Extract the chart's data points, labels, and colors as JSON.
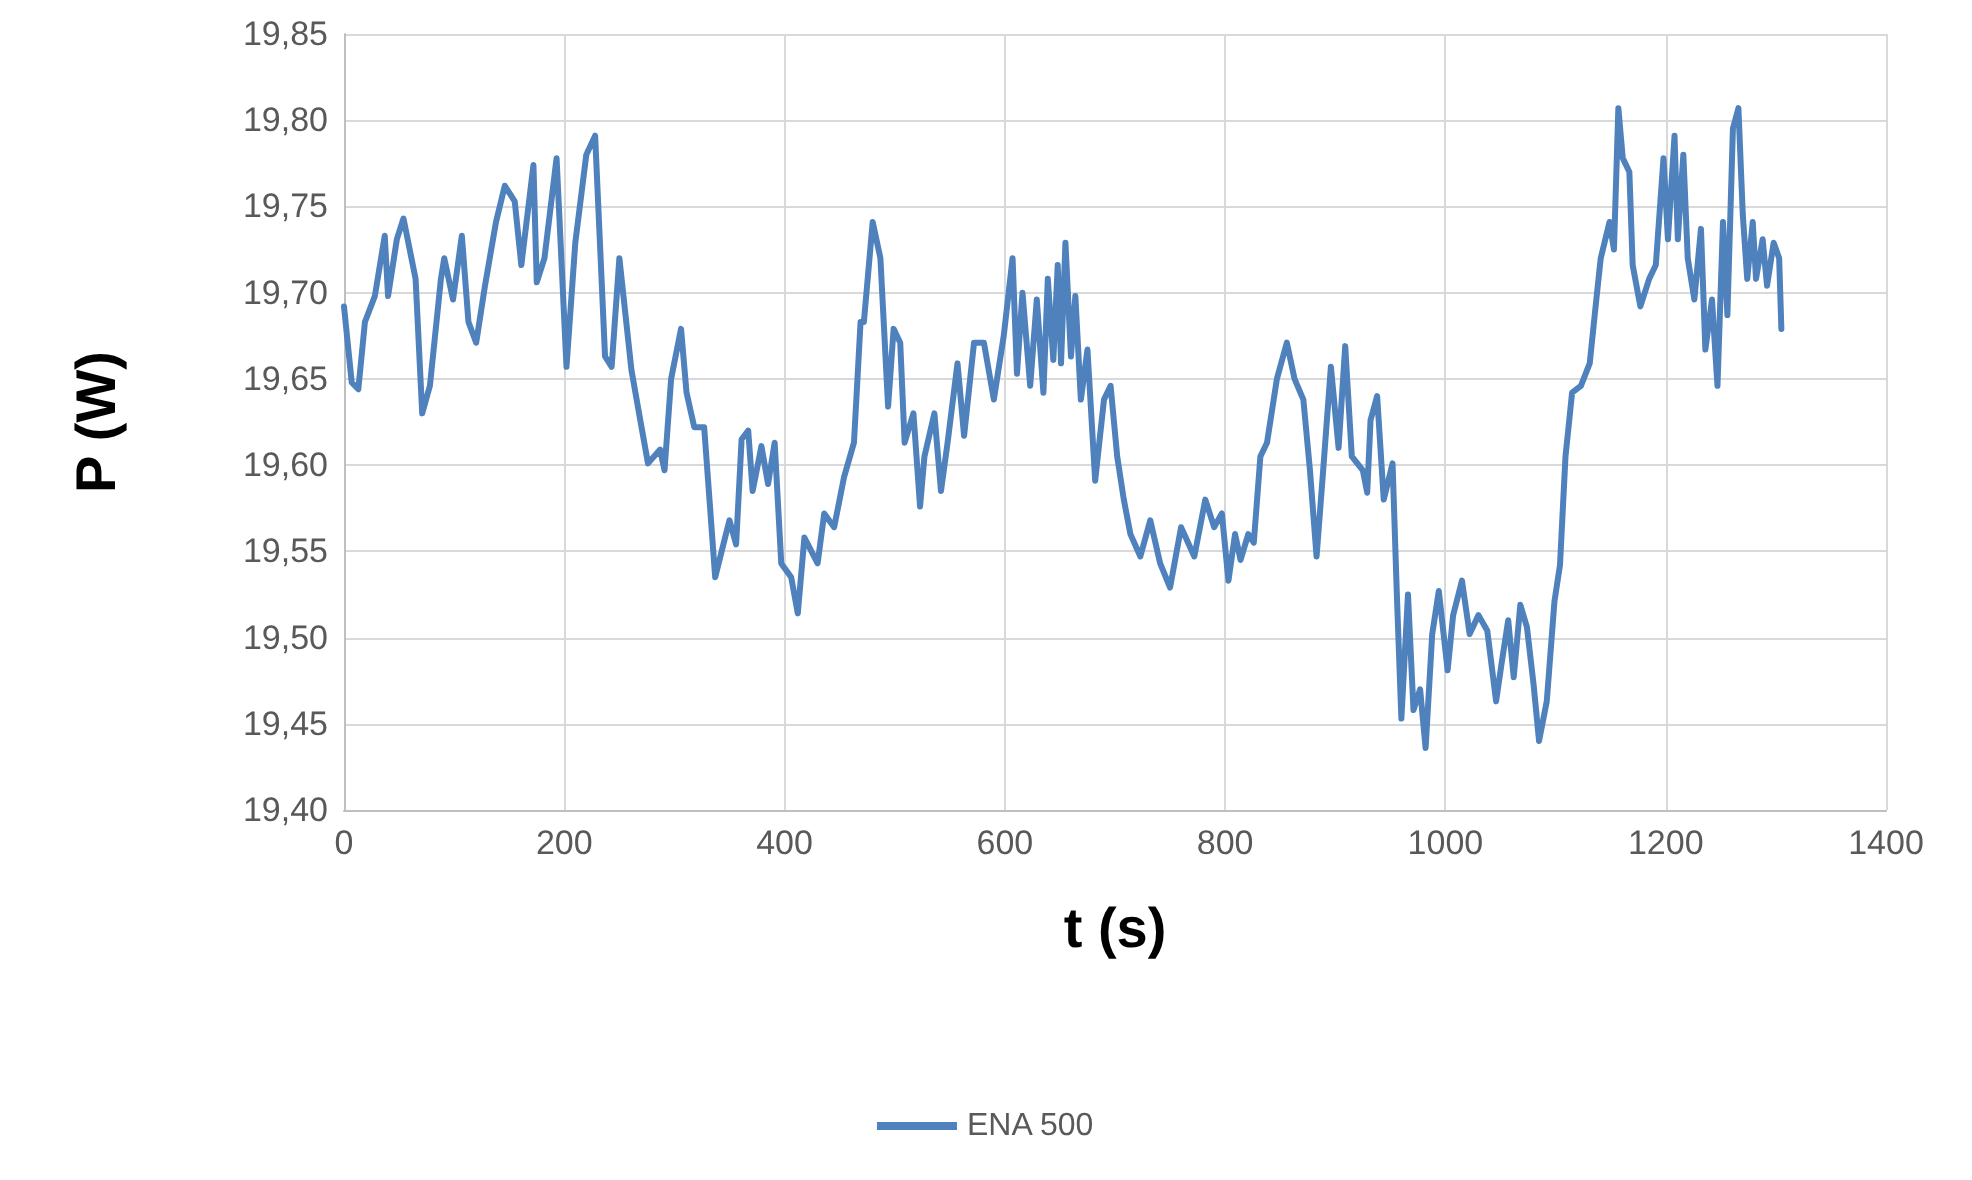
{
  "chart_data": {
    "type": "line",
    "xlabel": "t (s)",
    "ylabel": "P (W)",
    "legend": "bottom",
    "grid": true,
    "marker": "none",
    "line_style": "solid",
    "xlim": [
      0,
      1400
    ],
    "xticks": [
      0,
      200,
      400,
      600,
      800,
      1000,
      1200,
      1400
    ],
    "ylim": [
      19.4,
      19.85
    ],
    "yticks": [
      {
        "value": 19.4,
        "label": "19,40"
      },
      {
        "value": 19.45,
        "label": "19,45"
      },
      {
        "value": 19.5,
        "label": "19,50"
      },
      {
        "value": 19.55,
        "label": "19,55"
      },
      {
        "value": 19.6,
        "label": "19,60"
      },
      {
        "value": 19.65,
        "label": "19,65"
      },
      {
        "value": 19.7,
        "label": "19,70"
      },
      {
        "value": 19.75,
        "label": "19,75"
      },
      {
        "value": 19.8,
        "label": "19,80"
      },
      {
        "value": 19.85,
        "label": "19,85"
      }
    ],
    "series": [
      {
        "name": "ENA 500",
        "color": "#4f81bd",
        "x": [
          0,
          7,
          13,
          19,
          28,
          37,
          40,
          48,
          54,
          65,
          71,
          78,
          88,
          91,
          99,
          107,
          113,
          120,
          128,
          138,
          146,
          155,
          161,
          172,
          175,
          182,
          193,
          202,
          210,
          220,
          228,
          237,
          243,
          250,
          261,
          269,
          276,
          287,
          291,
          297,
          306,
          311,
          318,
          327,
          337,
          346,
          350,
          356,
          361,
          367,
          371,
          379,
          385,
          391,
          397,
          406,
          412,
          418,
          430,
          436,
          445,
          454,
          463,
          469,
          472,
          480,
          487,
          494,
          499,
          505,
          509,
          517,
          523,
          527,
          536,
          542,
          548,
          557,
          563,
          572,
          581,
          590,
          599,
          607,
          611,
          616,
          623,
          629,
          635,
          639,
          644,
          648,
          651,
          655,
          660,
          664,
          669,
          675,
          682,
          690,
          696,
          702,
          708,
          714,
          723,
          732,
          741,
          750,
          760,
          772,
          782,
          790,
          797,
          803,
          809,
          814,
          821,
          826,
          832,
          838,
          847,
          856,
          863,
          871,
          877,
          883,
          889,
          896,
          903,
          909,
          915,
          925,
          929,
          932,
          938,
          944,
          952,
          956,
          960,
          966,
          971,
          977,
          982,
          988,
          994,
          1002,
          1007,
          1015,
          1022,
          1030,
          1038,
          1046,
          1051,
          1057,
          1062,
          1068,
          1074,
          1080,
          1085,
          1092,
          1099,
          1104,
          1109,
          1115,
          1123,
          1131,
          1137,
          1141,
          1149,
          1153,
          1157,
          1161,
          1167,
          1170,
          1177,
          1185,
          1191,
          1198,
          1202,
          1208,
          1211,
          1216,
          1220,
          1226,
          1232,
          1236,
          1242,
          1247,
          1252,
          1256,
          1261,
          1266,
          1270,
          1274,
          1279,
          1282,
          1288,
          1292,
          1298,
          1303,
          1305
        ],
        "values": [
          19.692,
          19.648,
          19.644,
          19.683,
          19.698,
          19.733,
          19.698,
          19.731,
          19.743,
          19.708,
          19.63,
          19.646,
          19.708,
          19.72,
          19.696,
          19.733,
          19.683,
          19.671,
          19.704,
          19.741,
          19.762,
          19.753,
          19.716,
          19.774,
          19.706,
          19.72,
          19.778,
          19.657,
          19.729,
          19.78,
          19.791,
          19.663,
          19.657,
          19.72,
          19.655,
          19.626,
          19.601,
          19.609,
          19.597,
          19.65,
          19.679,
          19.642,
          19.622,
          19.622,
          19.535,
          19.558,
          19.568,
          19.554,
          19.615,
          19.62,
          19.585,
          19.611,
          19.589,
          19.613,
          19.543,
          19.535,
          19.514,
          19.558,
          19.543,
          19.572,
          19.564,
          19.593,
          19.613,
          19.683,
          19.683,
          19.741,
          19.72,
          19.634,
          19.679,
          19.671,
          19.613,
          19.63,
          19.576,
          19.605,
          19.63,
          19.585,
          19.613,
          19.659,
          19.617,
          19.671,
          19.671,
          19.638,
          19.675,
          19.72,
          19.653,
          19.7,
          19.646,
          19.696,
          19.642,
          19.708,
          19.661,
          19.716,
          19.659,
          19.729,
          19.663,
          19.698,
          19.638,
          19.667,
          19.591,
          19.638,
          19.646,
          19.605,
          19.58,
          19.56,
          19.547,
          19.568,
          19.543,
          19.529,
          19.564,
          19.547,
          19.58,
          19.564,
          19.572,
          19.533,
          19.56,
          19.545,
          19.56,
          19.555,
          19.605,
          19.613,
          19.65,
          19.671,
          19.65,
          19.638,
          19.597,
          19.547,
          19.597,
          19.657,
          19.61,
          19.669,
          19.605,
          19.597,
          19.584,
          19.626,
          19.64,
          19.58,
          19.601,
          19.523,
          19.453,
          19.525,
          19.458,
          19.47,
          19.436,
          19.502,
          19.527,
          19.481,
          19.513,
          19.533,
          19.502,
          19.513,
          19.504,
          19.463,
          19.485,
          19.51,
          19.477,
          19.519,
          19.506,
          19.473,
          19.44,
          19.463,
          19.521,
          19.542,
          19.605,
          19.642,
          19.646,
          19.659,
          19.696,
          19.72,
          19.741,
          19.725,
          19.807,
          19.778,
          19.77,
          19.716,
          19.692,
          19.708,
          19.716,
          19.778,
          19.731,
          19.791,
          19.731,
          19.78,
          19.72,
          19.696,
          19.737,
          19.667,
          19.696,
          19.646,
          19.741,
          19.687,
          19.795,
          19.807,
          19.745,
          19.708,
          19.741,
          19.708,
          19.731,
          19.704,
          19.729,
          19.72,
          19.679
        ]
      }
    ]
  }
}
